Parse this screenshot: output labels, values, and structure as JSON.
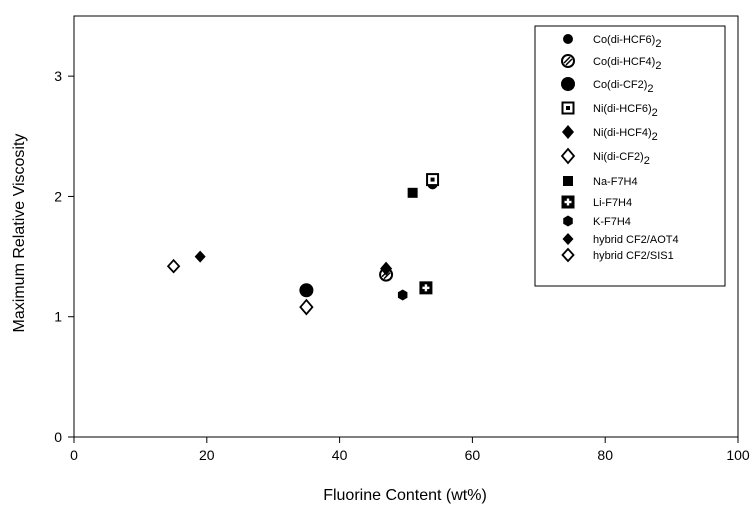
{
  "chart_data": {
    "type": "scatter",
    "xlabel": "Fluorine Content (wt%)",
    "ylabel": "Maximum Relative Viscosity",
    "xlim": [
      0,
      100
    ],
    "ylim": [
      0,
      3.5
    ],
    "xticks": [
      0,
      20,
      40,
      60,
      80,
      100
    ],
    "yticks": [
      0,
      1,
      2,
      3
    ],
    "grid": false,
    "legend_position": "top-right",
    "series": [
      {
        "name": "Co(di-HCF6)2",
        "label_main": "Co(di-HCF6)",
        "label_sub": "2",
        "marker": "circle-small-filled",
        "points": [
          [
            54,
            2.1
          ]
        ]
      },
      {
        "name": "Co(di-HCF4)2",
        "label_main": "Co(di-HCF4)",
        "label_sub": "2",
        "marker": "circle-hatched",
        "points": [
          [
            47,
            1.35
          ]
        ]
      },
      {
        "name": "Co(di-CF2)2",
        "label_main": "Co(di-CF2)",
        "label_sub": "2",
        "marker": "circle-large-filled",
        "points": [
          [
            35,
            1.22
          ]
        ]
      },
      {
        "name": "Ni(di-HCF6)2",
        "label_main": "Ni(di-HCF6)",
        "label_sub": "2",
        "marker": "square-dotted",
        "points": [
          [
            54,
            2.14
          ]
        ]
      },
      {
        "name": "Ni(di-HCF4)2",
        "label_main": "Ni(di-HCF4)",
        "label_sub": "2",
        "marker": "diamond-filled",
        "points": [
          [
            47,
            1.4
          ]
        ]
      },
      {
        "name": "Ni(di-CF2)2",
        "label_main": "Ni(di-CF2)",
        "label_sub": "2",
        "marker": "diamond-open",
        "points": [
          [
            35,
            1.08
          ]
        ]
      },
      {
        "name": "Na-F7H4",
        "label_main": "Na-F7H4",
        "label_sub": "",
        "marker": "square-filled",
        "points": [
          [
            51,
            2.03
          ]
        ]
      },
      {
        "name": "Li-F7H4",
        "label_main": "Li-F7H4",
        "label_sub": "",
        "marker": "square-cross",
        "points": [
          [
            53,
            1.24
          ]
        ]
      },
      {
        "name": "K-F7H4",
        "label_main": "K-F7H4",
        "label_sub": "",
        "marker": "hexagon-filled",
        "points": [
          [
            49.5,
            1.18
          ]
        ]
      },
      {
        "name": "hybrid CF2/AOT4",
        "label_main": "hybrid CF2/AOT4",
        "label_sub": "",
        "marker": "diamond-filled-small",
        "points": [
          [
            19,
            1.5
          ]
        ]
      },
      {
        "name": "hybrid CF2/SIS1",
        "label_main": "hybrid CF2/SIS1",
        "label_sub": "",
        "marker": "diamond-open-small",
        "points": [
          [
            15,
            1.42
          ]
        ]
      }
    ]
  }
}
